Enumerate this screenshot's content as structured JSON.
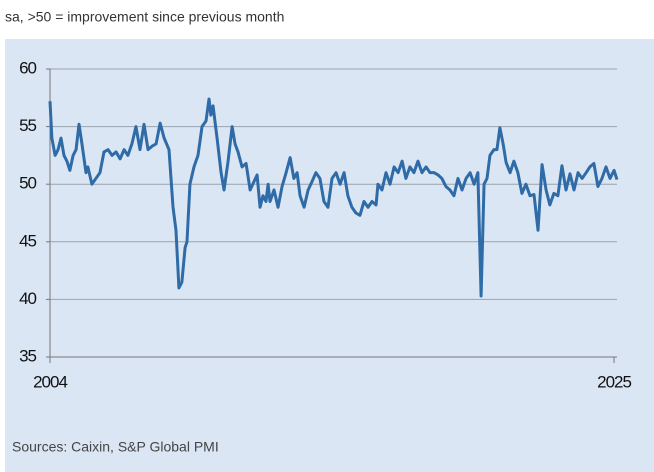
{
  "chart_data": {
    "type": "line",
    "subtitle": "sa, >50 = improvement since previous month",
    "source": "Sources: Caixin, S&P Global PMI",
    "x": [
      2004.0,
      2004.07,
      2004.19,
      2004.3,
      2004.41,
      2004.52,
      2004.63,
      2004.74,
      2004.86,
      2004.97,
      2005.08,
      2005.19,
      2005.34,
      2005.41,
      2005.56,
      2005.71,
      2005.86,
      2006.01,
      2006.16,
      2006.31,
      2006.46,
      2006.61,
      2006.76,
      2006.9,
      2007.05,
      2007.2,
      2007.35,
      2007.5,
      2007.65,
      2007.8,
      2007.95,
      2008.1,
      2008.25,
      2008.43,
      2008.58,
      2008.69,
      2008.8,
      2008.91,
      2009.03,
      2009.1,
      2009.21,
      2009.36,
      2009.51,
      2009.66,
      2009.81,
      2009.92,
      2009.99,
      2010.07,
      2010.22,
      2010.37,
      2010.48,
      2010.63,
      2010.78,
      2010.89,
      2011.0,
      2011.15,
      2011.3,
      2011.45,
      2011.59,
      2011.71,
      2011.82,
      2011.93,
      2012.04,
      2012.12,
      2012.19,
      2012.34,
      2012.49,
      2012.64,
      2012.79,
      2012.94,
      2013.08,
      2013.2,
      2013.31,
      2013.46,
      2013.61,
      2013.75,
      2013.9,
      2014.05,
      2014.2,
      2014.35,
      2014.5,
      2014.65,
      2014.8,
      2014.95,
      2015.09,
      2015.24,
      2015.39,
      2015.54,
      2015.69,
      2015.84,
      2015.99,
      2016.14,
      2016.21,
      2016.36,
      2016.51,
      2016.66,
      2016.81,
      2016.96,
      2017.11,
      2017.25,
      2017.4,
      2017.55,
      2017.7,
      2017.85,
      2018.0,
      2018.15,
      2018.3,
      2018.45,
      2018.59,
      2018.74,
      2018.89,
      2019.04,
      2019.19,
      2019.34,
      2019.49,
      2019.64,
      2019.79,
      2019.93,
      2020.05,
      2020.16,
      2020.27,
      2020.38,
      2020.53,
      2020.64,
      2020.75,
      2020.87,
      2020.98,
      2021.13,
      2021.27,
      2021.42,
      2021.57,
      2021.72,
      2021.87,
      2022.02,
      2022.17,
      2022.32,
      2022.47,
      2022.61,
      2022.76,
      2022.91,
      2023.06,
      2023.21,
      2023.36,
      2023.51,
      2023.66,
      2023.81,
      2023.96,
      2024.1,
      2024.25,
      2024.4,
      2024.55,
      2024.7,
      2024.85,
      2025.0,
      2025.11
    ],
    "series": [
      {
        "color": "#2f6ba7",
        "values": [
          57.2,
          54,
          52.5,
          53,
          54,
          52.5,
          52,
          51.2,
          52.5,
          53,
          55.2,
          53.5,
          51,
          51.5,
          50,
          50.5,
          51,
          52.8,
          53,
          52.5,
          52.8,
          52.2,
          53,
          52.5,
          53.5,
          55,
          53,
          55.2,
          53,
          53.3,
          53.5,
          55.3,
          54,
          53,
          48,
          46,
          41,
          41.5,
          44.5,
          45,
          50,
          51.5,
          52.5,
          55,
          55.5,
          57.4,
          56,
          56.8,
          54,
          51,
          49.5,
          52,
          55,
          53.5,
          52.8,
          51.5,
          51.8,
          49.5,
          50.2,
          50.8,
          48,
          49,
          48.5,
          50,
          48.5,
          49.5,
          48,
          49.8,
          51,
          52.3,
          50.5,
          51,
          49,
          48,
          49.5,
          50.2,
          51,
          50.5,
          48.5,
          48,
          50.5,
          51,
          50,
          51,
          49,
          48,
          47.5,
          47.3,
          48.5,
          48,
          48.5,
          48.2,
          50,
          49.5,
          51,
          50,
          51.5,
          51,
          52,
          50.5,
          51.5,
          51,
          52,
          51,
          51.5,
          51,
          51,
          50.8,
          50.5,
          49.8,
          49.5,
          49,
          50.5,
          49.5,
          50.5,
          51,
          50,
          51,
          40.3,
          50,
          50.5,
          52.5,
          53,
          53,
          54.9,
          53.5,
          51.9,
          51,
          52,
          51,
          49.2,
          50,
          49,
          49.1,
          46,
          51.7,
          49.5,
          48.2,
          49.2,
          49,
          51.6,
          49.5,
          50.9,
          49.5,
          51,
          50.5,
          51,
          51.5,
          51.8,
          49.8,
          50.5,
          51.5,
          50.5,
          51.2,
          50.4
        ]
      }
    ],
    "xlim": [
      2004,
      2025.11
    ],
    "xticks": [
      2004,
      2025
    ],
    "ylim": [
      35,
      60
    ],
    "yticks": [
      35,
      40,
      45,
      50,
      55,
      60
    ],
    "grid": true
  }
}
